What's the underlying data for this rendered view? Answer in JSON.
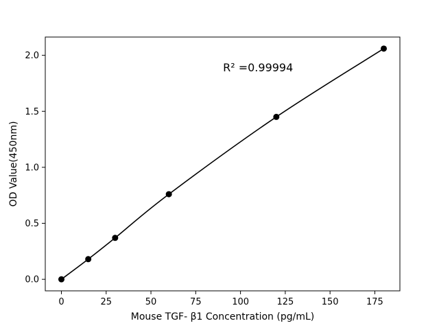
{
  "figure": {
    "background": "#ffffff"
  },
  "chart_data": {
    "type": "line",
    "x": [
      0,
      15,
      30,
      60,
      120,
      180
    ],
    "y": [
      0.0,
      0.18,
      0.37,
      0.76,
      1.45,
      2.06
    ],
    "title": "",
    "xlabel": "Mouse TGF- β1 Concentration (pg/mL)",
    "ylabel": "OD Value(450nm)",
    "xticks": [
      0,
      25,
      50,
      75,
      100,
      125,
      150,
      175
    ],
    "yticks": [
      0.0,
      0.5,
      1.0,
      1.5,
      2.0
    ],
    "xlim": [
      -9,
      189
    ],
    "ylim": [
      -0.103,
      2.163
    ],
    "annotation": "R² =0.99994",
    "line_color": "#000000",
    "marker_color": "#000000",
    "axis_color": "#000000",
    "grid": false,
    "legend_position": "none"
  }
}
